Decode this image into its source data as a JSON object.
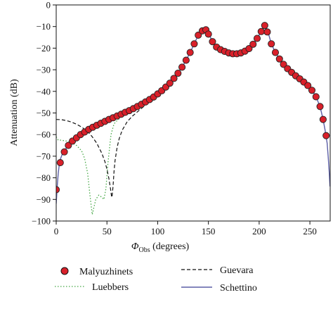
{
  "chart_data": {
    "type": "line",
    "xlabel_symbol": "Φ",
    "xlabel_sub": "Obs",
    "xlabel_rest": " (degrees)",
    "ylabel": "Attenuation (dB)",
    "xlim": [
      0,
      270
    ],
    "ylim": [
      -100,
      0
    ],
    "xticks": [
      0,
      50,
      100,
      150,
      200,
      250
    ],
    "yticks": [
      0,
      -10,
      -20,
      -30,
      -40,
      -50,
      -60,
      -70,
      -80,
      -90,
      -100
    ],
    "grid": false,
    "legend_position": "bottom",
    "series": [
      {
        "name": "Malyuzhinets",
        "style": "markers",
        "color": "#d9202a",
        "x": [
          0,
          4,
          8,
          12,
          16,
          20,
          24,
          28,
          32,
          36,
          40,
          44,
          48,
          52,
          56,
          60,
          64,
          68,
          72,
          76,
          80,
          84,
          88,
          92,
          96,
          100,
          104,
          108,
          112,
          116,
          120,
          124,
          128,
          132,
          136,
          140,
          144,
          147.5,
          150,
          154,
          158,
          162,
          166,
          170,
          174,
          178,
          182,
          186,
          190,
          194,
          198,
          202,
          205.5,
          208,
          212,
          216,
          220,
          224,
          228,
          232,
          236,
          240,
          244,
          248,
          252,
          256,
          260,
          263,
          266
        ],
        "y": [
          -85.5,
          -73,
          -68,
          -65,
          -63,
          -61.5,
          -60,
          -58.8,
          -57.6,
          -56.6,
          -55.7,
          -54.8,
          -53.9,
          -53,
          -52.2,
          -51.4,
          -50.6,
          -49.7,
          -48.9,
          -48,
          -47,
          -46,
          -44.9,
          -43.8,
          -42.6,
          -41.2,
          -39.7,
          -38,
          -36.2,
          -34,
          -31.6,
          -28.8,
          -25.6,
          -22,
          -18,
          -14,
          -12,
          -11.5,
          -13.5,
          -17,
          -19.5,
          -20.7,
          -21.5,
          -22.2,
          -22.6,
          -22.6,
          -22.2,
          -21.4,
          -20.2,
          -18.2,
          -15.5,
          -12.3,
          -9.5,
          -12.5,
          -18,
          -22,
          -25,
          -27.5,
          -29.5,
          -31.2,
          -32.8,
          -34.2,
          -35.7,
          -37.3,
          -39.5,
          -42.5,
          -47,
          -53,
          -60.5
        ]
      },
      {
        "name": "Luebbers",
        "style": "dotted",
        "color": "#47a847",
        "x": [
          0,
          2,
          5,
          10,
          15,
          20,
          25,
          28,
          31,
          33,
          34.5,
          35.5,
          37,
          39,
          42,
          45,
          47,
          49,
          51,
          54,
          57,
          60,
          65,
          70,
          75,
          80,
          90,
          100,
          110
        ],
        "y": [
          -61,
          -62.5,
          -62.6,
          -63,
          -63.8,
          -65,
          -67.5,
          -71,
          -78,
          -87,
          -93,
          -97,
          -94,
          -90,
          -88,
          -89,
          -90,
          -85,
          -73,
          -60,
          -55,
          -53.5,
          -51.5,
          -50,
          -48.5,
          -47,
          -44.5,
          -41.8,
          -38.5
        ]
      },
      {
        "name": "Guevara",
        "style": "dashed",
        "color": "#111111",
        "x": [
          0,
          5,
          10,
          15,
          20,
          25,
          30,
          35,
          40,
          45,
          48,
          50,
          52,
          53.5,
          54.5,
          55,
          56,
          57,
          58,
          60,
          62,
          65,
          70,
          75,
          80,
          85,
          90,
          95,
          100,
          105
        ],
        "y": [
          -53,
          -53.1,
          -53.5,
          -54.2,
          -55.2,
          -56.5,
          -58.2,
          -60.7,
          -64,
          -68.7,
          -72.5,
          -76,
          -80.5,
          -85,
          -88.5,
          -89,
          -84,
          -77,
          -72,
          -66,
          -62,
          -58,
          -54,
          -51.5,
          -49.5,
          -47.5,
          -45.5,
          -43.5,
          -41.5,
          -39.3
        ]
      },
      {
        "name": "Schettino",
        "style": "solid",
        "color": "#5b5ea6",
        "x": [
          0,
          0.5,
          1,
          2,
          3,
          4,
          6,
          8,
          12,
          16,
          20,
          24,
          28,
          32,
          36,
          40,
          44,
          48,
          52,
          56,
          60,
          64,
          68,
          72,
          76,
          80,
          84,
          88,
          92,
          96,
          100,
          104,
          108,
          112,
          116,
          120,
          124,
          128,
          132,
          136,
          140,
          144,
          146,
          147.5,
          149,
          151,
          154,
          158,
          162,
          166,
          170,
          174,
          178,
          182,
          186,
          190,
          194,
          198,
          202,
          204,
          205.5,
          207,
          209,
          212,
          216,
          220,
          224,
          228,
          232,
          236,
          240,
          244,
          248,
          252,
          256,
          260,
          263,
          265,
          267,
          268,
          269,
          269.8
        ],
        "y": [
          -92,
          -88,
          -84,
          -78,
          -74,
          -71.5,
          -69,
          -67.5,
          -65,
          -63,
          -61.5,
          -60,
          -58.8,
          -57.6,
          -56.6,
          -55.7,
          -54.8,
          -53.9,
          -53,
          -52.2,
          -51.4,
          -50.6,
          -49.7,
          -48.9,
          -48,
          -47,
          -46,
          -44.9,
          -43.8,
          -42.6,
          -41.2,
          -39.7,
          -38,
          -36.2,
          -34,
          -31.6,
          -28.8,
          -25.6,
          -22,
          -18,
          -14,
          -12.5,
          -11.7,
          -11.3,
          -12,
          -14,
          -17,
          -19.5,
          -20.7,
          -21.5,
          -22.2,
          -22.6,
          -22.6,
          -22.2,
          -21.4,
          -20.2,
          -18.2,
          -15.5,
          -12.3,
          -10.6,
          -9.6,
          -10.5,
          -13,
          -18,
          -22,
          -25,
          -27.5,
          -29.5,
          -31.2,
          -32.8,
          -34.2,
          -35.7,
          -37.3,
          -39.5,
          -42.5,
          -47,
          -53,
          -58,
          -64,
          -70,
          -77,
          -84
        ]
      }
    ]
  }
}
